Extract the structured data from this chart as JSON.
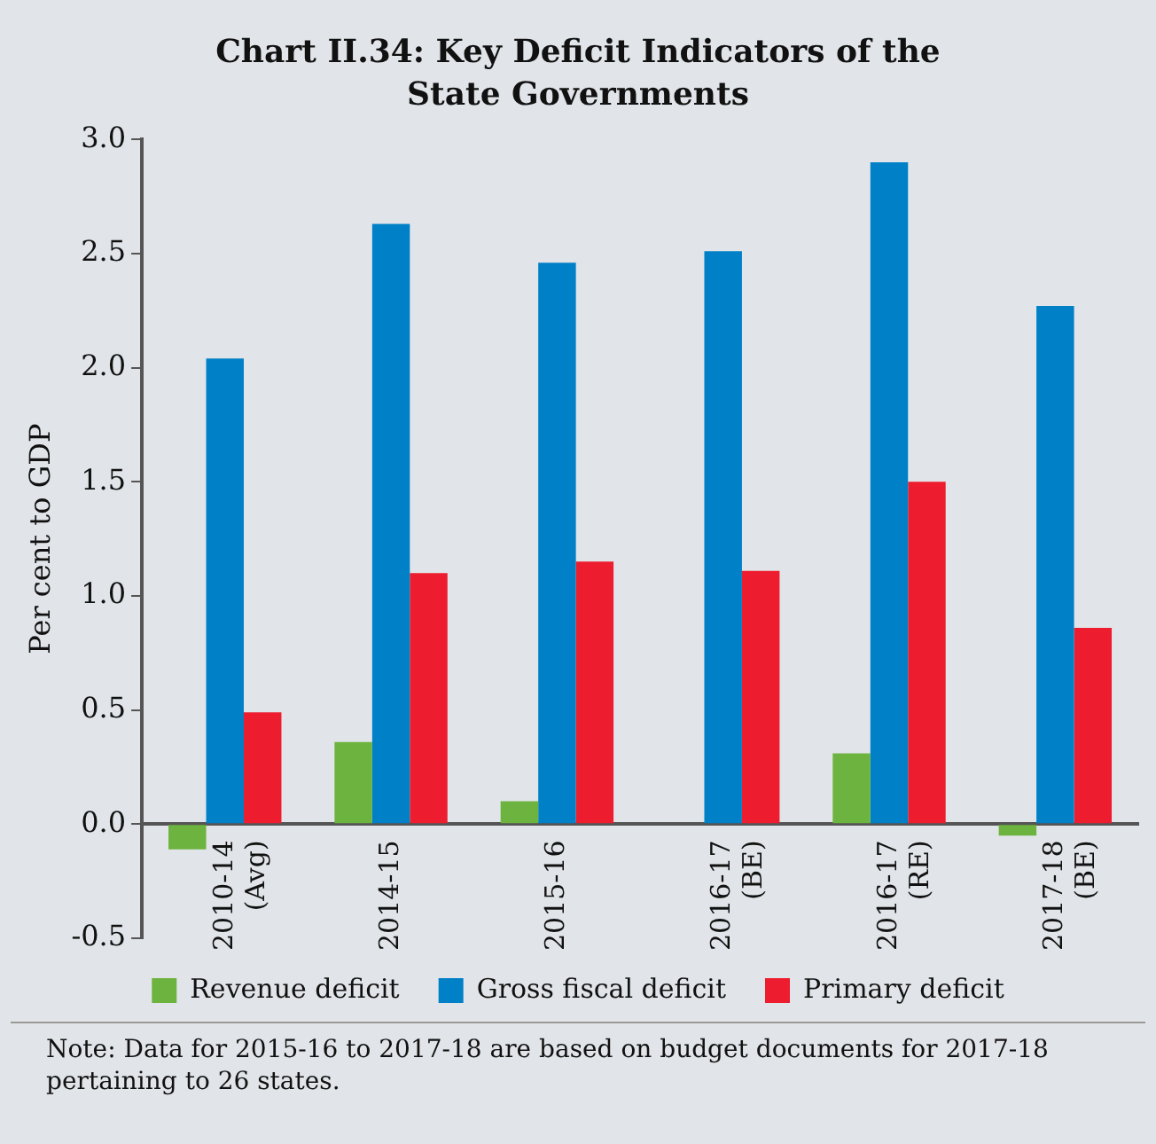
{
  "chart_data": {
    "type": "bar",
    "title": "Chart II.34: Key Deficit Indicators of the State Governments",
    "ylabel": "Per cent to GDP",
    "categories": [
      "2010-14 (Avg)",
      "2014-15",
      "2015-16",
      "2016-17 (BE)",
      "2016-17 (RE)",
      "2017-18 (BE)"
    ],
    "series": [
      {
        "name": "Revenue deficit",
        "color": "#6db33f",
        "values": [
          -0.11,
          0.36,
          0.1,
          0,
          0.31,
          -0.05
        ]
      },
      {
        "name": "Gross fiscal deficit",
        "color": "#0080c6",
        "values": [
          2.04,
          2.63,
          2.46,
          2.51,
          2.9,
          2.27
        ]
      },
      {
        "name": "Primary deficit",
        "color": "#ed1c2e",
        "values": [
          0.49,
          1.1,
          1.15,
          1.11,
          1.5,
          0.86
        ]
      }
    ],
    "ylim": [
      -0.5,
      3.0
    ],
    "yticks": [
      {
        "value": -0.5,
        "label": "-0.5"
      },
      {
        "value": 0,
        "label": "0.0"
      },
      {
        "value": 0.5,
        "label": "0.5"
      },
      {
        "value": 1,
        "label": "1.0"
      },
      {
        "value": 1.5,
        "label": "1.5"
      },
      {
        "value": 2,
        "label": "2.0"
      },
      {
        "value": 2.5,
        "label": "2.5"
      },
      {
        "value": 3,
        "label": "3.0"
      }
    ],
    "legend": "bottom",
    "annotations": [
      "Note: Data for 2015-16 to 2017-18 are based on budget documents for 2017-18 pertaining to 26 states."
    ]
  }
}
